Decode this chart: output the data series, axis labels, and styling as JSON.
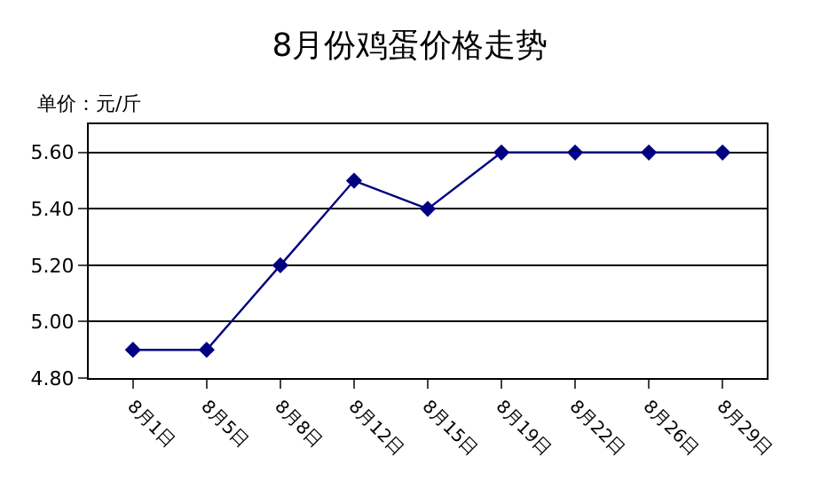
{
  "chart_data": {
    "type": "line",
    "title": "8月份鸡蛋价格走势",
    "ylabel": "单价：元/斤",
    "categories": [
      "8月1日",
      "8月5日",
      "8月8日",
      "8月12日",
      "8月15日",
      "8月19日",
      "8月22日",
      "8月26日",
      "8月29日"
    ],
    "series": [
      {
        "color": "#000080",
        "values": [
          4.9,
          4.9,
          5.2,
          5.5,
          5.4,
          5.6,
          5.6,
          5.6,
          5.6
        ]
      }
    ],
    "ylim": [
      4.8,
      5.7
    ],
    "yticks": [
      {
        "value": 4.8,
        "label": "4.80"
      },
      {
        "value": 5.0,
        "label": "5.00"
      },
      {
        "value": 5.2,
        "label": "5.20"
      },
      {
        "value": 5.4,
        "label": "5.40"
      },
      {
        "value": 5.6,
        "label": "5.60"
      }
    ],
    "grid": "y",
    "legend": false,
    "marker": "diamond",
    "line_style": "solid"
  }
}
